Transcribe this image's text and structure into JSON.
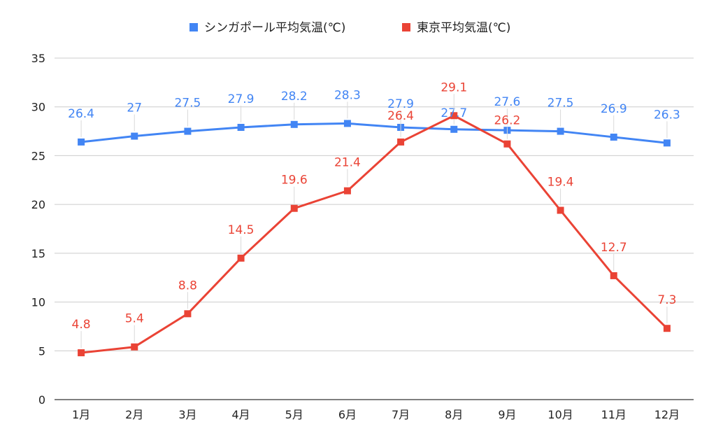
{
  "chart_data": {
    "type": "line",
    "title": "",
    "xlabel": "",
    "ylabel": "",
    "categories": [
      "1月",
      "2月",
      "3月",
      "4月",
      "5月",
      "6月",
      "7月",
      "8月",
      "9月",
      "10月",
      "11月",
      "12月"
    ],
    "ylim": [
      0,
      35
    ],
    "yticks": [
      "0",
      "5",
      "10",
      "15",
      "20",
      "25",
      "30",
      "35"
    ],
    "grid": true,
    "legend_position": "top-center",
    "series": [
      {
        "name": "シンガポール平均気温(℃)",
        "color": "#4285f4",
        "values": [
          26.4,
          27,
          27.5,
          27.9,
          28.2,
          28.3,
          27.9,
          27.7,
          27.6,
          27.5,
          26.9,
          26.3
        ],
        "labels": [
          "26.4",
          "27",
          "27.5",
          "27.9",
          "28.2",
          "28.3",
          "27.9",
          "27.7",
          "27.6",
          "27.5",
          "26.9",
          "26.3"
        ]
      },
      {
        "name": "東京平均気温(℃)",
        "color": "#ea4335",
        "values": [
          4.8,
          5.4,
          8.8,
          14.5,
          19.6,
          21.4,
          26.4,
          29.1,
          26.2,
          19.4,
          12.7,
          7.3
        ],
        "labels": [
          "4.8",
          "5.4",
          "8.8",
          "14.5",
          "19.6",
          "21.4",
          "26.4",
          "29.1",
          "26.2",
          "19.4",
          "12.7",
          "7.3"
        ]
      }
    ]
  }
}
